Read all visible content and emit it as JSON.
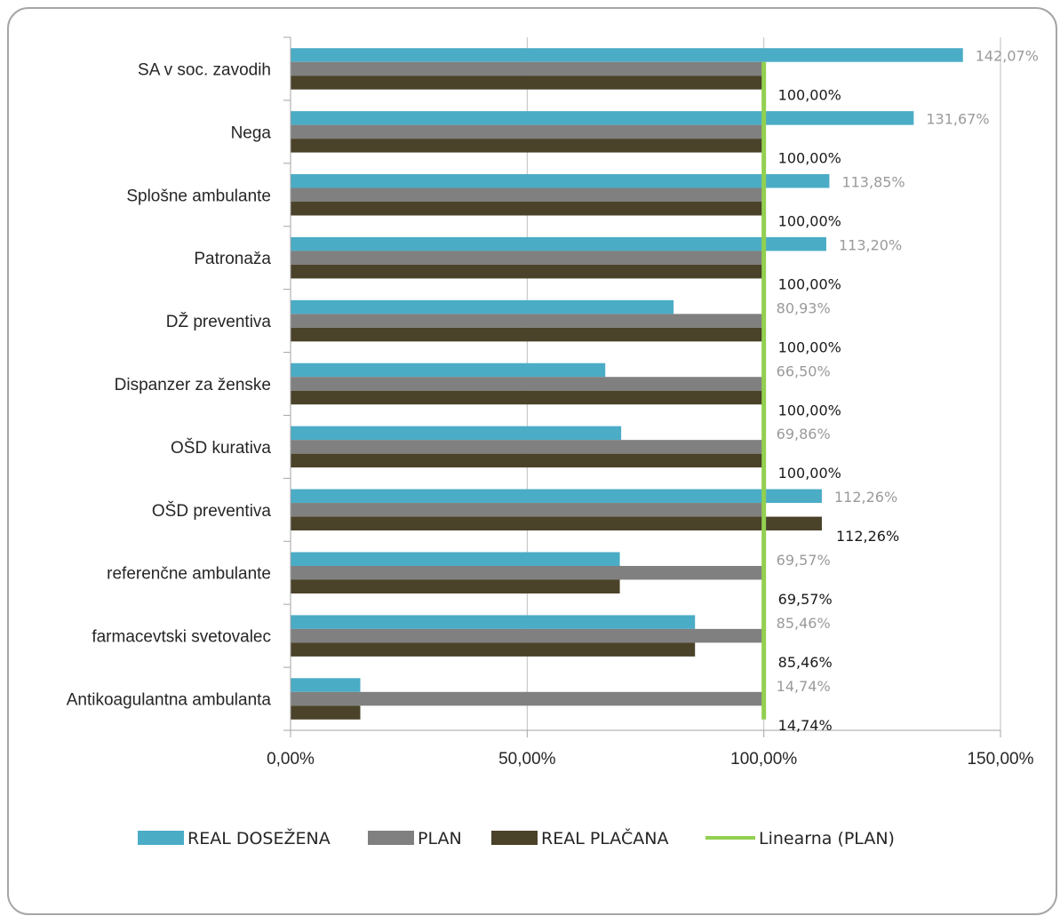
{
  "chart_data": {
    "type": "bar",
    "orientation": "horizontal",
    "categories": [
      "SA v soc. zavodih",
      "Nega",
      "Splošne ambulante",
      "Patronaža",
      "DŽ preventiva",
      "Dispanzer za ženske",
      "OŠD kurativa",
      "OŠD preventiva",
      "referenčne ambulante",
      "farmacevtski svetovalec",
      "Antikoagulantna ambulanta"
    ],
    "series": [
      {
        "name": "REAL DOSEŽENA",
        "color": "#4bacc6",
        "values": [
          142.07,
          131.67,
          113.85,
          113.2,
          80.93,
          66.5,
          69.86,
          112.26,
          69.57,
          85.46,
          14.74
        ],
        "labels": [
          "142,07%",
          "131,67%",
          "113,85%",
          "113,20%",
          "80,93%",
          "66,50%",
          "69,86%",
          "112,26%",
          "69,57%",
          "85,46%",
          "14,74%"
        ]
      },
      {
        "name": "PLAN",
        "color": "#808080",
        "values": [
          100,
          100,
          100,
          100,
          100,
          100,
          100,
          100,
          100,
          100,
          100
        ]
      },
      {
        "name": "REAL PLAČANA",
        "color": "#4a4229",
        "values": [
          100,
          100,
          100,
          100,
          100,
          100,
          100,
          112.26,
          69.57,
          85.46,
          14.74
        ],
        "labels": [
          "100,00%",
          "100,00%",
          "100,00%",
          "100,00%",
          "100,00%",
          "100,00%",
          "100,00%",
          "112,26%",
          "69,57%",
          "85,46%",
          "14,74%"
        ]
      }
    ],
    "trendline": {
      "name": "Linearna (PLAN)",
      "color": "#92d050",
      "value": 100
    },
    "xlim": [
      0,
      150
    ],
    "xticks": [
      0,
      50,
      100,
      150
    ],
    "xtick_labels": [
      "0,00%",
      "50,00%",
      "100,00%",
      "150,00%"
    ],
    "grid": "vertical",
    "legend_position": "bottom"
  }
}
